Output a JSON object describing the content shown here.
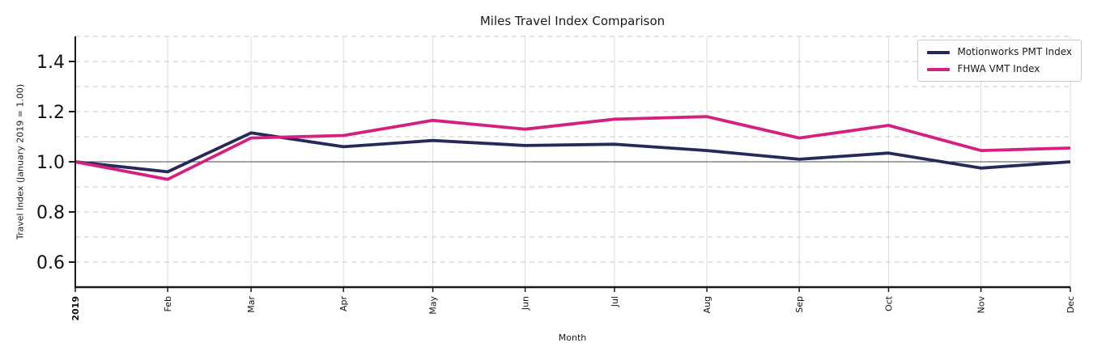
{
  "figure": {
    "title": "Miles Travel Index Comparison",
    "xlabel": "Month",
    "ylabel": "Travel Index (January 2019 = 1.00)"
  },
  "chart_data": {
    "type": "line",
    "title": "Miles Travel Index Comparison",
    "xlabel": "Month",
    "ylabel": "Travel Index (January 2019 = 1.00)",
    "categories": [
      "2019",
      "Feb",
      "Mar",
      "Apr",
      "May",
      "Jun",
      "Jul",
      "Aug",
      "Sep",
      "Oct",
      "Nov",
      "Dec"
    ],
    "x_day_offsets": [
      0,
      31,
      59,
      90,
      120,
      151,
      181,
      212,
      243,
      273,
      304,
      334
    ],
    "series": [
      {
        "name": "Motionworks PMT Index",
        "color": "#252a59",
        "values": [
          1.0,
          0.96,
          1.115,
          1.06,
          1.085,
          1.065,
          1.07,
          1.045,
          1.01,
          1.035,
          0.975,
          1.0
        ]
      },
      {
        "name": "FHWA VMT Index",
        "color": "#d4217f",
        "values": [
          1.0,
          0.93,
          1.095,
          1.105,
          1.165,
          1.13,
          1.17,
          1.18,
          1.095,
          1.145,
          1.045,
          1.055
        ]
      }
    ],
    "ylim": [
      0.5,
      1.5
    ],
    "yticks": [
      0.6,
      0.8,
      1.0,
      1.2,
      1.4
    ],
    "ytick_labels": [
      "0.6",
      "0.8",
      "1.0",
      "1.2",
      "1.4"
    ],
    "reference_line": 1.0,
    "grid": {
      "horizontal": "dashed, every 0.1",
      "vertical": "solid, every month"
    },
    "legend_position": "upper right",
    "colors": {
      "spine": "#1a1a1a",
      "h_grid": "#c9c9c9",
      "v_grid": "#dcdcdc",
      "reference": "#4a4a4a",
      "tick_text": "#111111"
    }
  }
}
